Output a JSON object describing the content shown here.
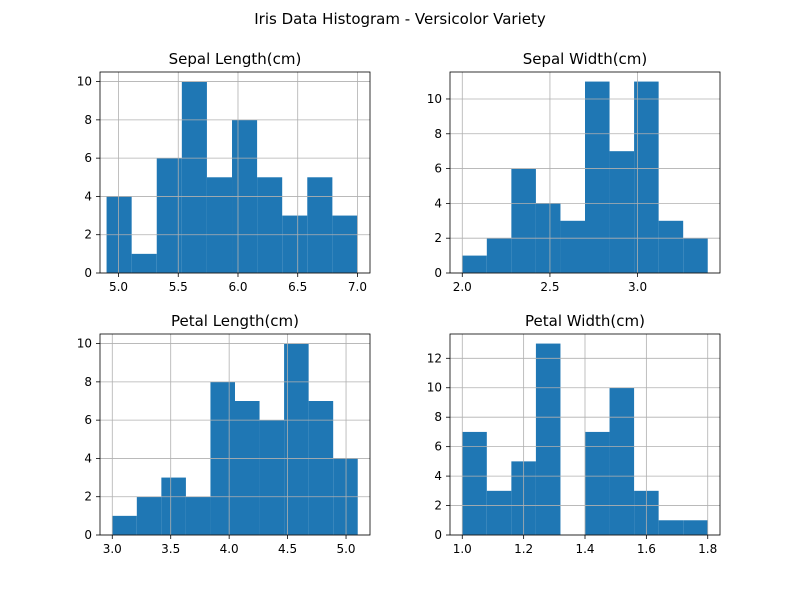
{
  "figure": {
    "title": "Iris Data Histogram - Versicolor Variety"
  },
  "chart_data": [
    {
      "type": "bar",
      "title": "Sepal Length(cm)",
      "xlabel": "",
      "ylabel": "",
      "xlim": [
        4.845,
        7.105
      ],
      "ylim": [
        0,
        10.5
      ],
      "xticks": [
        "5.0",
        "5.5",
        "6.0",
        "6.5",
        "7.0"
      ],
      "yticks": [
        "0",
        "2",
        "4",
        "6",
        "8",
        "10"
      ],
      "grid": true,
      "bin_edges": [
        4.9,
        5.11,
        5.32,
        5.53,
        5.74,
        5.95,
        6.16,
        6.37,
        6.58,
        6.79,
        7.0
      ],
      "values": [
        4,
        1,
        6,
        10,
        5,
        8,
        5,
        3,
        5,
        3
      ],
      "color": "#1f77b4"
    },
    {
      "type": "bar",
      "title": "Sepal Width(cm)",
      "xlabel": "",
      "ylabel": "",
      "xlim": [
        1.93,
        3.47
      ],
      "ylim": [
        0,
        11.55
      ],
      "xticks": [
        "2.0",
        "2.5",
        "3.0"
      ],
      "yticks": [
        "0",
        "2",
        "4",
        "6",
        "8",
        "10"
      ],
      "grid": true,
      "bin_edges": [
        2.0,
        2.14,
        2.28,
        2.42,
        2.56,
        2.7,
        2.84,
        2.98,
        3.12,
        3.26,
        3.4
      ],
      "values": [
        1,
        2,
        6,
        4,
        3,
        11,
        7,
        11,
        3,
        2
      ],
      "color": "#1f77b4"
    },
    {
      "type": "bar",
      "title": "Petal Length(cm)",
      "xlabel": "",
      "ylabel": "",
      "xlim": [
        2.895,
        5.205
      ],
      "ylim": [
        0,
        10.5
      ],
      "xticks": [
        "3.0",
        "3.5",
        "4.0",
        "4.5",
        "5.0"
      ],
      "yticks": [
        "0",
        "2",
        "4",
        "6",
        "8",
        "10"
      ],
      "grid": true,
      "bin_edges": [
        3.0,
        3.21,
        3.42,
        3.63,
        3.84,
        4.05,
        4.26,
        4.47,
        4.68,
        4.89,
        5.1
      ],
      "values": [
        1,
        2,
        3,
        2,
        8,
        7,
        6,
        10,
        7,
        4
      ],
      "color": "#1f77b4"
    },
    {
      "type": "bar",
      "title": "Petal Width(cm)",
      "xlabel": "",
      "ylabel": "",
      "xlim": [
        0.96,
        1.84
      ],
      "ylim": [
        0,
        13.65
      ],
      "xticks": [
        "1.0",
        "1.2",
        "1.4",
        "1.6",
        "1.8"
      ],
      "yticks": [
        "0",
        "2",
        "4",
        "6",
        "8",
        "10",
        "12"
      ],
      "grid": true,
      "bin_edges": [
        1.0,
        1.08,
        1.16,
        1.24,
        1.32,
        1.4,
        1.48,
        1.56,
        1.64,
        1.72,
        1.8
      ],
      "values": [
        7,
        3,
        5,
        13,
        0,
        7,
        10,
        3,
        1,
        1
      ],
      "color": "#1f77b4"
    }
  ]
}
